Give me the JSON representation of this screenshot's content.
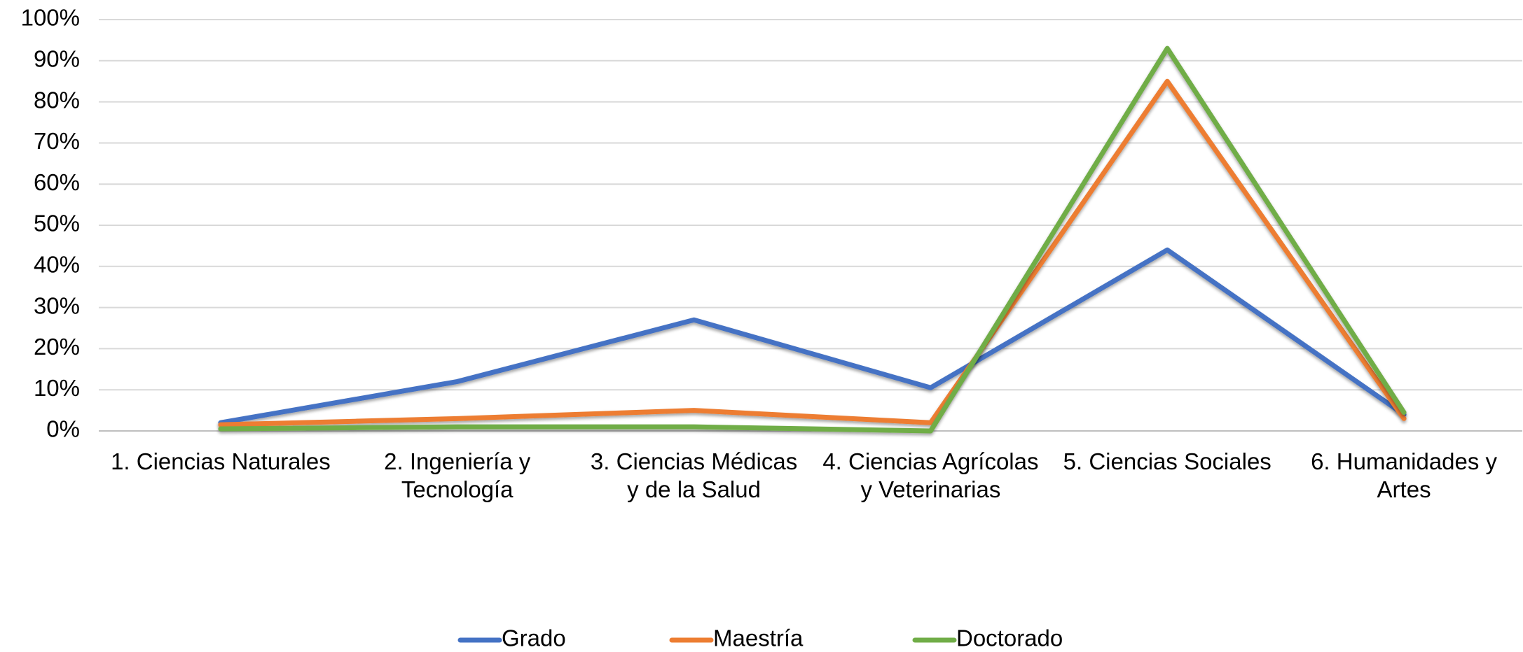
{
  "chart_data": {
    "type": "line",
    "categories": [
      "1. Ciencias Naturales",
      "2. Ingeniería y Tecnología",
      "3. Ciencias Médicas y de la Salud",
      "4. Ciencias Agrícolas y Veterinarias",
      "5. Ciencias Sociales",
      "6. Humanidades y Artes"
    ],
    "series": [
      {
        "name": "Grado",
        "color": "#4472c4",
        "values": [
          2,
          12,
          27,
          10.5,
          44,
          4
        ]
      },
      {
        "name": "Maestría",
        "color": "#ed7d31",
        "values": [
          1.5,
          3,
          5,
          2,
          85,
          3
        ]
      },
      {
        "name": "Doctorado",
        "color": "#70ad47",
        "values": [
          0.5,
          1,
          1,
          0,
          93,
          4.5
        ]
      }
    ],
    "ylim": [
      0,
      100
    ],
    "yticks": [
      {
        "value": 0,
        "label": "0%"
      },
      {
        "value": 10,
        "label": "10%"
      },
      {
        "value": 20,
        "label": "20%"
      },
      {
        "value": 30,
        "label": "30%"
      },
      {
        "value": 40,
        "label": "40%"
      },
      {
        "value": 50,
        "label": "50%"
      },
      {
        "value": 60,
        "label": "60%"
      },
      {
        "value": 70,
        "label": "70%"
      },
      {
        "value": 80,
        "label": "80%"
      },
      {
        "value": 90,
        "label": "90%"
      },
      {
        "value": 100,
        "label": "100%"
      }
    ],
    "grid": true,
    "legend": "bottom"
  }
}
